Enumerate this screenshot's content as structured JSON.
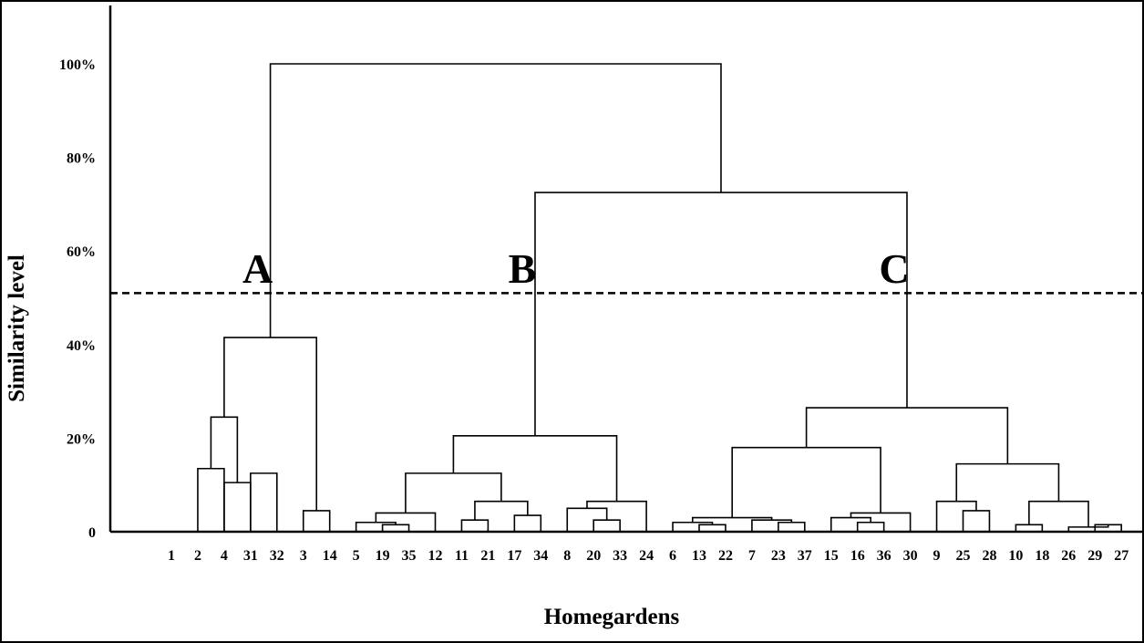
{
  "chart_data": {
    "type": "dendrogram",
    "xlabel": "Homegardens",
    "ylabel": "Similarity level",
    "y_ticks": [
      {
        "value": 0,
        "label": "0"
      },
      {
        "value": 20,
        "label": "20%"
      },
      {
        "value": 40,
        "label": "40%"
      },
      {
        "value": 60,
        "label": "60%"
      },
      {
        "value": 80,
        "label": "80%"
      },
      {
        "value": 100,
        "label": "100%"
      }
    ],
    "ylim": [
      0,
      100
    ],
    "cut_line": {
      "value": 51,
      "style": "dashed"
    },
    "cluster_labels": [
      "A",
      "B",
      "C"
    ],
    "leaves": [
      "1",
      "2",
      "4",
      "31",
      "32",
      "3",
      "14",
      "5",
      "19",
      "35",
      "12",
      "11",
      "21",
      "17",
      "34",
      "8",
      "20",
      "33",
      "24",
      "6",
      "13",
      "22",
      "7",
      "23",
      "37",
      "15",
      "16",
      "36",
      "30",
      "9",
      "25",
      "28",
      "10",
      "18",
      "26",
      "29",
      "27"
    ],
    "merges": [
      {
        "left": "L:1",
        "right": "L:2",
        "height": 13.5
      },
      {
        "left": "L:2",
        "right": "L:3",
        "height": 10.5
      },
      {
        "left": "L:3",
        "right": "L:4",
        "height": 12.5
      },
      {
        "left": "L:5",
        "right": "L:6",
        "height": 4.5
      },
      {
        "left": "N:1",
        "right": "N:0",
        "height": 24.5
      },
      {
        "left": "N:4",
        "right": "N:3",
        "height": 41.5
      },
      {
        "left": "L:8",
        "right": "L:9",
        "height": 1.5
      },
      {
        "left": "L:7",
        "right": "N:6",
        "height": 2.0
      },
      {
        "left": "N:7",
        "right": "L:10",
        "height": 4.0
      },
      {
        "left": "L:11",
        "right": "L:12",
        "height": 2.5
      },
      {
        "left": "L:13",
        "right": "L:14",
        "height": 3.5
      },
      {
        "left": "N:9",
        "right": "N:10",
        "height": 6.5
      },
      {
        "left": "N:8",
        "right": "N:11",
        "height": 12.5
      },
      {
        "left": "L:16",
        "right": "L:17",
        "height": 2.5
      },
      {
        "left": "L:15",
        "right": "N:13",
        "height": 5.0
      },
      {
        "left": "N:14",
        "right": "L:18",
        "height": 6.5
      },
      {
        "left": "N:12",
        "right": "N:15",
        "height": 20.5
      },
      {
        "left": "L:20",
        "right": "L:21",
        "height": 1.5
      },
      {
        "left": "L:19",
        "right": "N:17",
        "height": 2.0
      },
      {
        "left": "L:23",
        "right": "L:24",
        "height": 2.0
      },
      {
        "left": "L:22",
        "right": "N:19",
        "height": 2.5
      },
      {
        "left": "N:18",
        "right": "N:20",
        "height": 3.0
      },
      {
        "left": "L:26",
        "right": "L:27",
        "height": 2.0
      },
      {
        "left": "L:25",
        "right": "N:22",
        "height": 3.0
      },
      {
        "left": "N:23",
        "right": "L:28",
        "height": 4.0
      },
      {
        "left": "N:21",
        "right": "N:24",
        "height": 18.0
      },
      {
        "left": "L:30",
        "right": "L:31",
        "height": 4.5
      },
      {
        "left": "L:29",
        "right": "N:26",
        "height": 6.5
      },
      {
        "left": "L:32",
        "right": "L:33",
        "height": 1.5
      },
      {
        "left": "L:35",
        "right": "L:36",
        "height": 1.5
      },
      {
        "left": "L:34",
        "right": "N:29",
        "height": 1.0
      },
      {
        "left": "N:28",
        "right": "N:30",
        "height": 6.5
      },
      {
        "left": "N:27",
        "right": "N:31",
        "height": 14.5
      },
      {
        "left": "N:25",
        "right": "N:32",
        "height": 26.5
      },
      {
        "left": "N:16",
        "right": "N:33",
        "height": 72.5
      },
      {
        "left": "N:5",
        "right": "N:34",
        "height": 100
      }
    ]
  }
}
